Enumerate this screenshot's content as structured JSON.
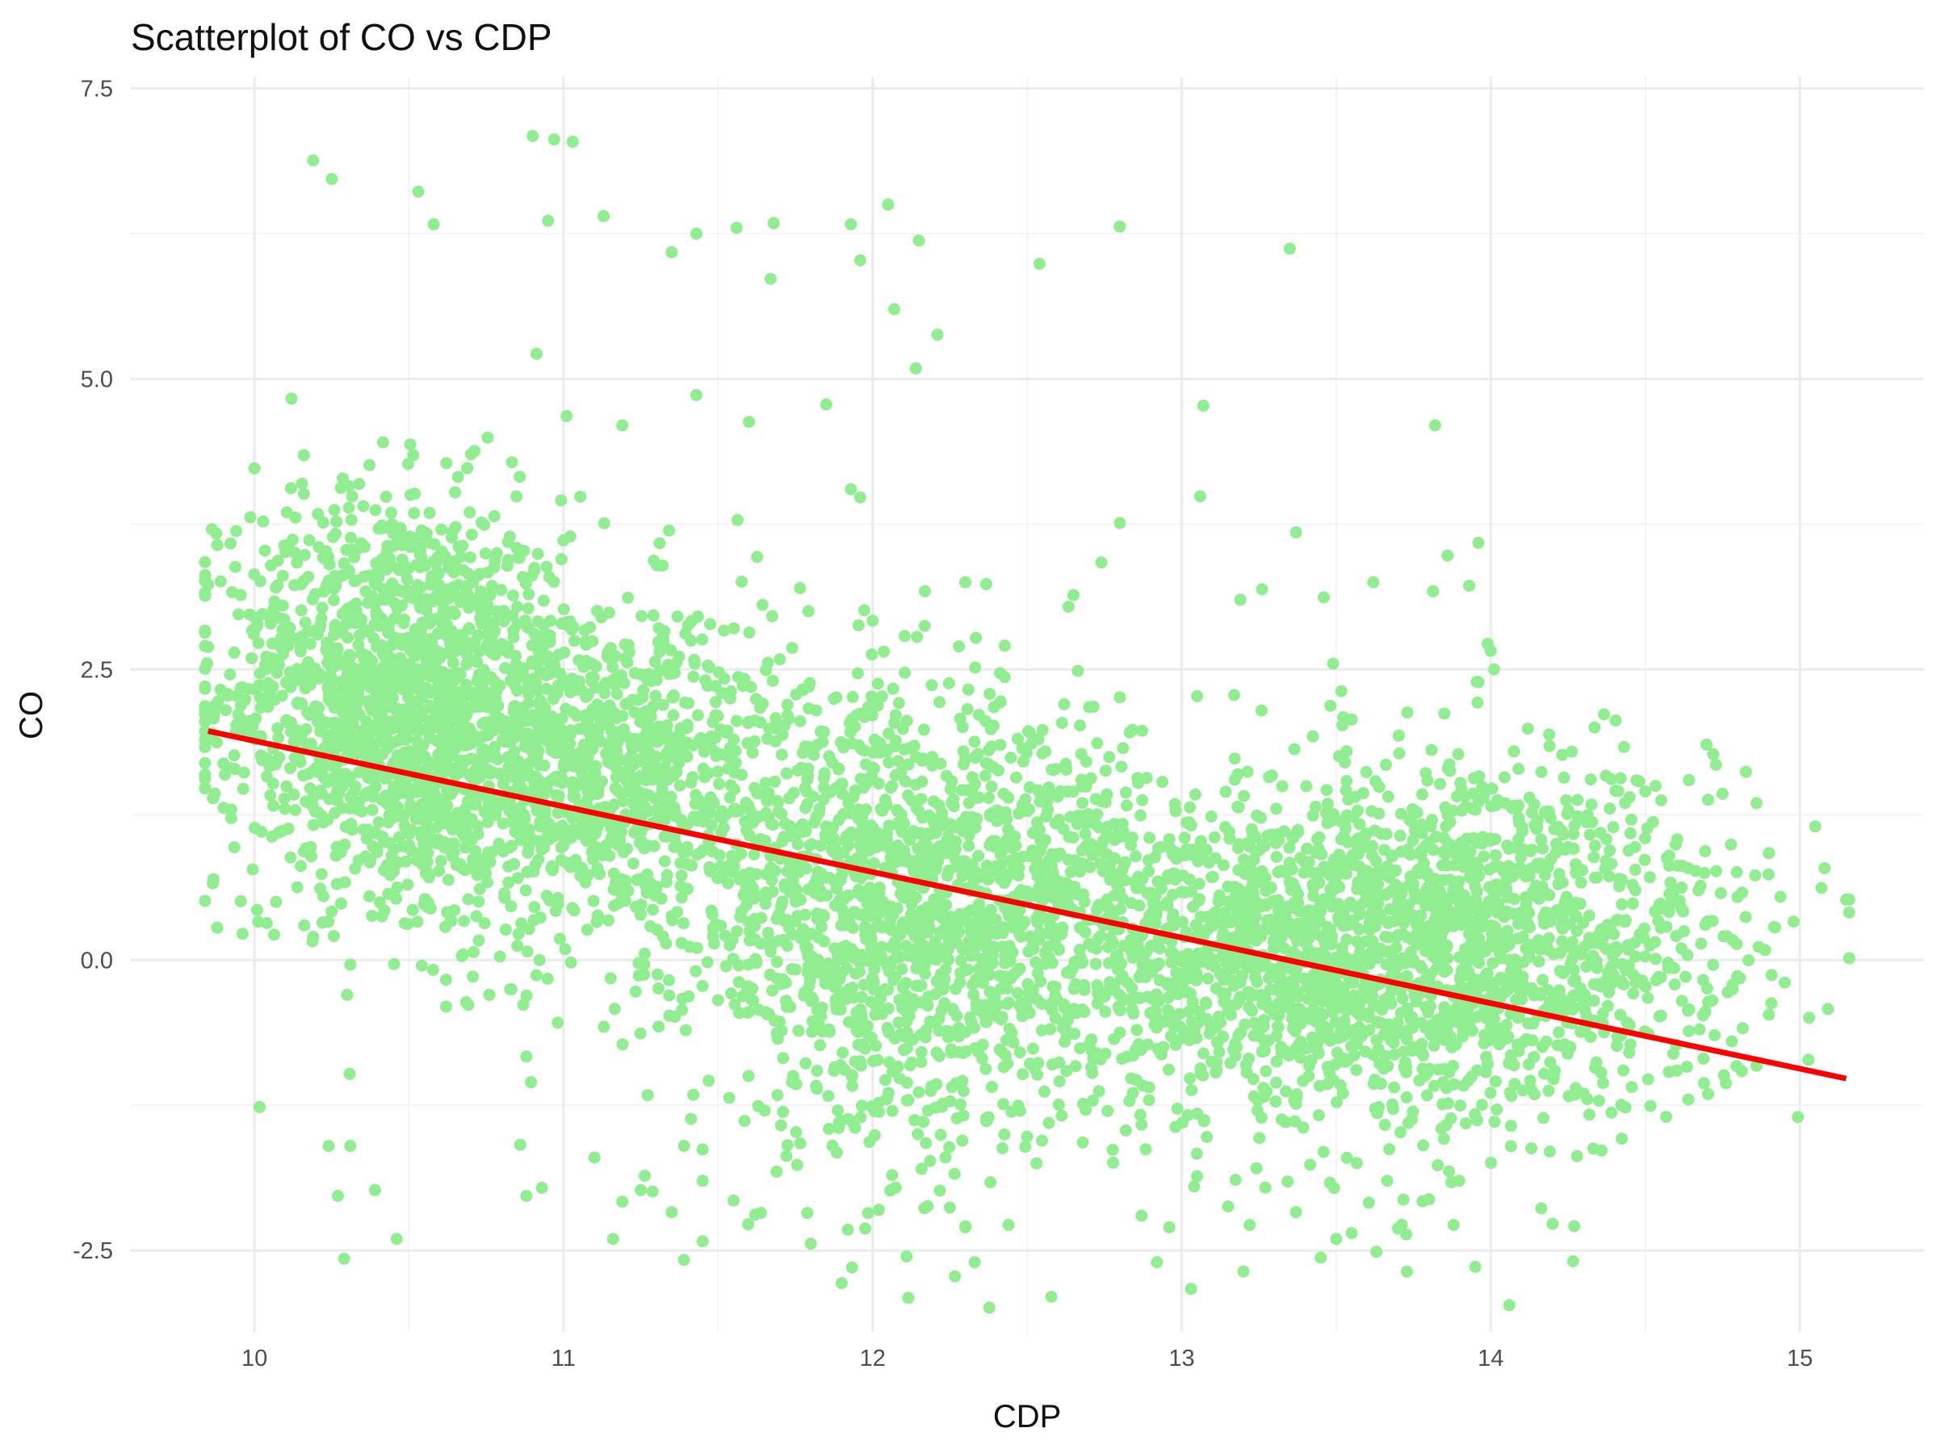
{
  "chart_data": {
    "type": "scatter",
    "title": "Scatterplot of CO vs CDP",
    "xlabel": "CDP",
    "ylabel": "CO",
    "xlim": [
      9.6,
      15.4
    ],
    "ylim": [
      -3.2,
      7.6
    ],
    "x_ticks": [
      10,
      11,
      12,
      13,
      14,
      15
    ],
    "x_tick_labels": [
      "10",
      "11",
      "12",
      "13",
      "14",
      "15"
    ],
    "y_ticks": [
      -2.5,
      0,
      2.5,
      5,
      7.5
    ],
    "y_tick_labels": [
      "-2.5",
      "0.0",
      "2.5",
      "5.0",
      "7.5"
    ],
    "grid": true,
    "point_color": "#90EE90",
    "line_color": "#FF0000",
    "regression_line": {
      "x": [
        9.85,
        15.15
      ],
      "y": [
        1.97,
        -1.02
      ]
    },
    "clusters": [
      {
        "cx": 10.45,
        "cy": 2.3,
        "sx": 0.28,
        "sy": 0.85,
        "n": 1400
      },
      {
        "cx": 11.1,
        "cy": 1.6,
        "sx": 0.35,
        "sy": 0.75,
        "n": 1100
      },
      {
        "cx": 12.05,
        "cy": 0.35,
        "sx": 0.32,
        "sy": 0.95,
        "n": 1200
      },
      {
        "cx": 12.6,
        "cy": 0.4,
        "sx": 0.3,
        "sy": 0.75,
        "n": 500
      },
      {
        "cx": 13.3,
        "cy": 0.0,
        "sx": 0.3,
        "sy": 0.7,
        "n": 900
      },
      {
        "cx": 13.95,
        "cy": 0.15,
        "sx": 0.32,
        "sy": 0.8,
        "n": 1100
      },
      {
        "cx": 14.6,
        "cy": 0.1,
        "sx": 0.2,
        "sy": 0.6,
        "n": 120
      }
    ],
    "outlier_points": [
      {
        "x": 10.19,
        "y": 6.88
      },
      {
        "x": 10.25,
        "y": 6.72
      },
      {
        "x": 10.9,
        "y": 7.09
      },
      {
        "x": 10.97,
        "y": 7.06
      },
      {
        "x": 11.03,
        "y": 7.04
      },
      {
        "x": 10.53,
        "y": 6.61
      },
      {
        "x": 10.58,
        "y": 6.33
      },
      {
        "x": 12.05,
        "y": 6.5
      },
      {
        "x": 11.93,
        "y": 6.33
      },
      {
        "x": 11.68,
        "y": 6.34
      },
      {
        "x": 11.56,
        "y": 6.3
      },
      {
        "x": 11.43,
        "y": 6.25
      },
      {
        "x": 12.15,
        "y": 6.19
      },
      {
        "x": 12.8,
        "y": 6.31
      },
      {
        "x": 13.35,
        "y": 6.12
      },
      {
        "x": 12.54,
        "y": 5.99
      },
      {
        "x": 11.96,
        "y": 6.02
      },
      {
        "x": 11.13,
        "y": 6.4
      },
      {
        "x": 10.95,
        "y": 6.36
      },
      {
        "x": 11.35,
        "y": 6.09
      },
      {
        "x": 11.67,
        "y": 5.86
      },
      {
        "x": 12.07,
        "y": 5.6
      },
      {
        "x": 12.21,
        "y": 5.38
      },
      {
        "x": 12.14,
        "y": 5.09
      },
      {
        "x": 11.85,
        "y": 4.78
      },
      {
        "x": 13.07,
        "y": 4.77
      },
      {
        "x": 13.82,
        "y": 4.6
      },
      {
        "x": 11.43,
        "y": 4.86
      },
      {
        "x": 11.6,
        "y": 4.63
      },
      {
        "x": 11.19,
        "y": 4.6
      },
      {
        "x": 11.01,
        "y": 4.68
      },
      {
        "x": 10.12,
        "y": 4.83
      },
      {
        "x": 11.93,
        "y": 4.05
      },
      {
        "x": 11.96,
        "y": 3.98
      },
      {
        "x": 13.06,
        "y": 3.99
      },
      {
        "x": 12.8,
        "y": 3.76
      },
      {
        "x": 13.37,
        "y": 3.68
      },
      {
        "x": 13.96,
        "y": 3.59
      },
      {
        "x": 13.86,
        "y": 3.48
      },
      {
        "x": 12.74,
        "y": 3.42
      },
      {
        "x": 12.3,
        "y": 3.25
      },
      {
        "x": 13.62,
        "y": 3.25
      },
      {
        "x": 13.93,
        "y": 3.22
      },
      {
        "x": 13.26,
        "y": 3.19
      },
      {
        "x": 12.65,
        "y": 3.14
      },
      {
        "x": 13.46,
        "y": 3.12
      },
      {
        "x": 13.19,
        "y": 3.1
      },
      {
        "x": 13.99,
        "y": 2.72
      },
      {
        "x": 14.0,
        "y": 2.66
      },
      {
        "x": 13.49,
        "y": 2.55
      },
      {
        "x": 13.96,
        "y": 2.39
      },
      {
        "x": 12.8,
        "y": 2.26
      },
      {
        "x": 13.05,
        "y": 2.27
      },
      {
        "x": 13.17,
        "y": 2.28
      },
      {
        "x": 12.62,
        "y": 2.2
      },
      {
        "x": 13.73,
        "y": 2.13
      },
      {
        "x": 13.85,
        "y": 2.12
      },
      {
        "x": 13.55,
        "y": 2.07
      },
      {
        "x": 14.12,
        "y": 1.99
      },
      {
        "x": 13.52,
        "y": 2.02
      },
      {
        "x": 14.19,
        "y": 1.84
      },
      {
        "x": 14.72,
        "y": 1.77
      },
      {
        "x": 14.5,
        "y": 1.45
      },
      {
        "x": 14.75,
        "y": 1.43
      },
      {
        "x": 14.86,
        "y": 1.35
      },
      {
        "x": 15.05,
        "y": 1.15
      },
      {
        "x": 15.08,
        "y": 0.79
      },
      {
        "x": 15.15,
        "y": 0.52
      },
      {
        "x": 15.07,
        "y": 0.62
      },
      {
        "x": 14.9,
        "y": 0.92
      },
      {
        "x": 14.98,
        "y": 0.33
      },
      {
        "x": 14.92,
        "y": 0.28
      },
      {
        "x": 14.9,
        "y": -0.47
      },
      {
        "x": 14.86,
        "y": -0.91
      },
      {
        "x": 14.69,
        "y": -1.06
      },
      {
        "x": 14.6,
        "y": -0.73
      },
      {
        "x": 14.78,
        "y": -0.7
      },
      {
        "x": 10.19,
        "y": 0.2
      },
      {
        "x": 10.07,
        "y": 0.5
      },
      {
        "x": 9.9,
        "y": 1.69
      },
      {
        "x": 9.85,
        "y": 3.23
      },
      {
        "x": 9.88,
        "y": 3.57
      },
      {
        "x": 10.0,
        "y": 4.23
      },
      {
        "x": 10.31,
        "y": -0.04
      },
      {
        "x": 10.3,
        "y": -0.3
      },
      {
        "x": 10.24,
        "y": -1.6
      },
      {
        "x": 10.31,
        "y": -1.6
      },
      {
        "x": 10.27,
        "y": -2.03
      },
      {
        "x": 10.39,
        "y": -1.98
      },
      {
        "x": 10.29,
        "y": -2.57
      },
      {
        "x": 10.46,
        "y": -2.4
      },
      {
        "x": 10.86,
        "y": -1.59
      },
      {
        "x": 10.88,
        "y": -2.03
      },
      {
        "x": 10.93,
        "y": -1.96
      },
      {
        "x": 10.88,
        "y": -0.83
      },
      {
        "x": 10.62,
        "y": -0.4
      },
      {
        "x": 10.62,
        "y": -0.17
      },
      {
        "x": 10.76,
        "y": -0.3
      },
      {
        "x": 11.1,
        "y": -1.7
      },
      {
        "x": 11.16,
        "y": -2.4
      },
      {
        "x": 11.19,
        "y": -2.08
      },
      {
        "x": 11.25,
        "y": -1.98
      },
      {
        "x": 11.35,
        "y": -2.17
      },
      {
        "x": 11.39,
        "y": -2.58
      },
      {
        "x": 11.45,
        "y": -2.42
      },
      {
        "x": 11.45,
        "y": -1.9
      },
      {
        "x": 11.39,
        "y": -1.6
      },
      {
        "x": 11.45,
        "y": -1.63
      },
      {
        "x": 11.42,
        "y": -1.16
      },
      {
        "x": 11.55,
        "y": -2.07
      },
      {
        "x": 11.62,
        "y": -2.19
      },
      {
        "x": 11.8,
        "y": -2.44
      },
      {
        "x": 11.9,
        "y": -2.78
      },
      {
        "x": 11.92,
        "y": -2.32
      },
      {
        "x": 12.02,
        "y": -2.15
      },
      {
        "x": 12.11,
        "y": -2.55
      },
      {
        "x": 12.25,
        "y": -2.13
      },
      {
        "x": 12.3,
        "y": -2.3
      },
      {
        "x": 12.44,
        "y": -2.28
      },
      {
        "x": 12.87,
        "y": -2.2
      },
      {
        "x": 12.92,
        "y": -2.6
      },
      {
        "x": 12.96,
        "y": -2.3
      },
      {
        "x": 13.03,
        "y": -2.83
      },
      {
        "x": 13.15,
        "y": -2.12
      },
      {
        "x": 13.2,
        "y": -2.68
      },
      {
        "x": 13.22,
        "y": -2.28
      },
      {
        "x": 13.37,
        "y": -2.17
      },
      {
        "x": 13.45,
        "y": -2.56
      },
      {
        "x": 13.5,
        "y": -2.4
      },
      {
        "x": 13.55,
        "y": -2.35
      },
      {
        "x": 13.63,
        "y": -2.51
      },
      {
        "x": 13.7,
        "y": -2.31
      },
      {
        "x": 13.88,
        "y": -2.28
      },
      {
        "x": 13.95,
        "y": -2.64
      },
      {
        "x": 14.06,
        "y": -2.97
      },
      {
        "x": 14.2,
        "y": -2.27
      },
      {
        "x": 14.27,
        "y": -2.29
      },
      {
        "x": 13.05,
        "y": -1.86
      },
      {
        "x": 12.53,
        "y": -1.75
      },
      {
        "x": 12.68,
        "y": -1.57
      },
      {
        "x": 12.42,
        "y": -1.62
      },
      {
        "x": 12.5,
        "y": -1.52
      }
    ]
  }
}
